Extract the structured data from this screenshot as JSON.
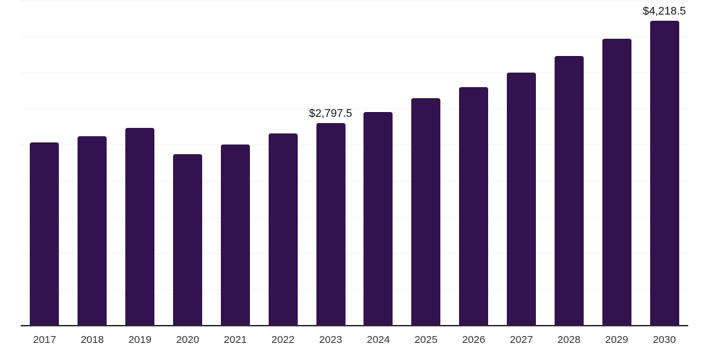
{
  "chart_data": {
    "type": "bar",
    "title": "",
    "xlabel": "",
    "ylabel": "",
    "categories": [
      "2017",
      "2018",
      "2019",
      "2020",
      "2021",
      "2022",
      "2023",
      "2024",
      "2025",
      "2026",
      "2027",
      "2028",
      "2029",
      "2030"
    ],
    "values": [
      2535,
      2615,
      2730,
      2370,
      2505,
      2655,
      2797.5,
      2960,
      3150,
      3305,
      3500,
      3735,
      3970,
      4218.5
    ],
    "value_labels": [
      {
        "category": "2023",
        "text": "$2,797.5"
      },
      {
        "category": "2030",
        "text": "$4,218.5"
      }
    ],
    "ylim": [
      0,
      4500
    ],
    "gridline_step": 500,
    "grid": "horizontal",
    "legend": "none",
    "colors": {
      "bar": "#33134d",
      "gridline": "#f2f2f2",
      "axis": "#2b2b2b",
      "tick_label": "#333333",
      "value_label": "#111111",
      "background": "#ffffff"
    }
  }
}
